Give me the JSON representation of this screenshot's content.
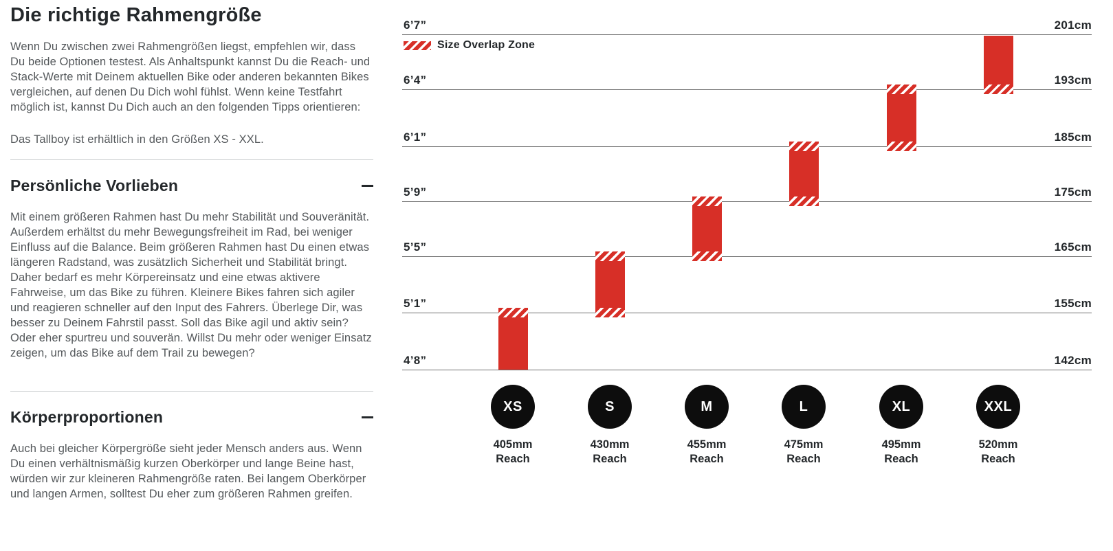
{
  "article": {
    "title": "Die richtige Rahmengröße",
    "intro": "Wenn Du zwischen zwei Rahmengrößen liegst, empfehlen wir, dass Du beide Optionen testest. Als Anhaltspunkt kannst Du die Reach- und Stack-Werte mit Deinem aktuellen Bike oder anderen bekannten Bikes vergleichen, auf denen Du Dich wohl fühlst. Wenn keine Testfahrt möglich ist, kannst Du Dich auch an den folgenden Tipps orientieren:",
    "availability": "Das Tallboy ist erhältlich in den Größen XS - XXL.",
    "sections": [
      {
        "heading": "Persönliche Vorlieben",
        "collapse_icon": "minus",
        "body": "Mit einem größeren Rahmen hast Du mehr Stabilität und Souveränität. Außerdem erhältst du mehr Bewegungsfreiheit im Rad, bei weniger Einfluss auf die Balance. Beim größeren Rahmen hast Du einen etwas längeren Radstand, was zusätzlich Sicherheit und Stabilität bringt. Daher bedarf es mehr Körpereinsatz und eine etwas aktivere Fahrweise, um das Bike zu führen. Kleinere Bikes fahren sich agiler und reagieren schneller auf den Input des Fahrers. Überlege Dir, was besser zu Deinem Fahrstil passt. Soll das Bike agil und aktiv sein? Oder eher spurtreu und souverän. Willst Du mehr oder weniger Einsatz zeigen, um das Bike auf dem Trail zu bewegen?"
      },
      {
        "heading": "Körperproportionen",
        "collapse_icon": "minus",
        "body": "Auch bei gleicher Körpergröße sieht jeder Mensch anders aus. Wenn Du einen verhältnismäßig kurzen Oberkörper und lange Beine hast, würden wir zur kleineren Rahmengröße raten. Bei langem Oberkörper und langen Armen, solltest Du eher zum größeren Rahmen greifen."
      }
    ]
  },
  "chart_data": {
    "type": "bar",
    "orientation": "vertical-range-bars",
    "legend": {
      "label": "Size Overlap Zone",
      "swatch": "red-diagonal-hatch",
      "position": "top-left"
    },
    "grid": "horizontal-lines-on",
    "height_lines": [
      {
        "ft": "6’7”",
        "cm": "201cm",
        "cm_value": 201
      },
      {
        "ft": "6’4”",
        "cm": "193cm",
        "cm_value": 193
      },
      {
        "ft": "6’1”",
        "cm": "185cm",
        "cm_value": 185
      },
      {
        "ft": "5’9”",
        "cm": "175cm",
        "cm_value": 175
      },
      {
        "ft": "5’5”",
        "cm": "165cm",
        "cm_value": 165
      },
      {
        "ft": "5’1”",
        "cm": "155cm",
        "cm_value": 155
      },
      {
        "ft": "4’8”",
        "cm": "142cm",
        "cm_value": 142
      }
    ],
    "sizes": [
      {
        "label": "XS",
        "reach": "405mm",
        "band": [
          5,
          6
        ],
        "height_range_cm": [
          142,
          155
        ],
        "height_range_ft": "4’8”–5’1”",
        "overlap_top": true,
        "overlap_bottom": false
      },
      {
        "label": "S",
        "reach": "430mm",
        "band": [
          4,
          5
        ],
        "height_range_cm": [
          155,
          165
        ],
        "height_range_ft": "5’1”–5’5”",
        "overlap_top": true,
        "overlap_bottom": true
      },
      {
        "label": "M",
        "reach": "455mm",
        "band": [
          3,
          4
        ],
        "height_range_cm": [
          165,
          175
        ],
        "height_range_ft": "5’5”–5’9”",
        "overlap_top": true,
        "overlap_bottom": true
      },
      {
        "label": "L",
        "reach": "475mm",
        "band": [
          2,
          3
        ],
        "height_range_cm": [
          175,
          185
        ],
        "height_range_ft": "5’9”–6’1”",
        "overlap_top": true,
        "overlap_bottom": true
      },
      {
        "label": "XL",
        "reach": "495mm",
        "band": [
          1,
          2
        ],
        "height_range_cm": [
          185,
          193
        ],
        "height_range_ft": "6’1”–6’4”",
        "overlap_top": true,
        "overlap_bottom": true
      },
      {
        "label": "XXL",
        "reach": "520mm",
        "band": [
          0,
          1
        ],
        "height_range_cm": [
          193,
          201
        ],
        "height_range_ft": "6’4”–6’7”",
        "overlap_top": false,
        "overlap_bottom": true
      }
    ],
    "reach_suffix": "Reach",
    "colors": {
      "bar_red": "#d72f27",
      "circle_black": "#0d0d0d",
      "gridline_gray": "#6e6e6e",
      "heading_ink": "#24282b",
      "body_gray": "#54585b"
    }
  }
}
